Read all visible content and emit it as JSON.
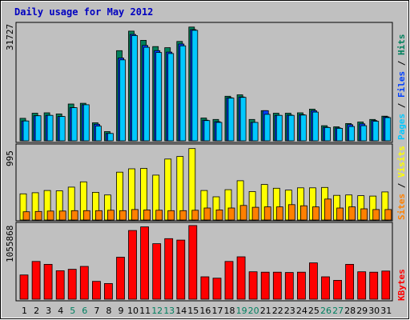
{
  "title": "Daily usage for May 2012",
  "colors": {
    "title": "#0000c0",
    "hits": "#00805c",
    "files": "#0040ff",
    "pages": "#00c8ff",
    "visits": "#ffff00",
    "sites": "#ff8000",
    "kbytes": "#ff0000",
    "day_weekday": "#000000",
    "day_weekend": "#008060"
  },
  "chart_data": [
    {
      "type": "bar",
      "title": "Daily usage for May 2012",
      "panel": "hits-files-pages",
      "ymax_label": "31727",
      "ylim": [
        0,
        31727
      ],
      "series": [
        {
          "name": "Hits",
          "values": [
            6100,
            7500,
            7600,
            7300,
            10000,
            10200,
            4900,
            2500,
            24500,
            29800,
            27300,
            25600,
            25300,
            27000,
            30900,
            6200,
            5800,
            12100,
            12500,
            5800,
            8200,
            7500,
            7500,
            7600,
            8600,
            4100,
            3800,
            4700,
            5100,
            5800,
            6700
          ]
        },
        {
          "name": "Files",
          "values": [
            5400,
            6800,
            6900,
            6600,
            9000,
            9800,
            4500,
            2000,
            22500,
            28900,
            25900,
            24500,
            24100,
            26300,
            30200,
            5600,
            5200,
            11700,
            11900,
            5000,
            8200,
            6900,
            7000,
            7100,
            8200,
            3700,
            3500,
            4400,
            4600,
            5500,
            6500
          ]
        },
        {
          "name": "Pages",
          "values": [
            5400,
            6800,
            6900,
            6600,
            9000,
            9800,
            4000,
            2000,
            22000,
            28600,
            25400,
            24000,
            23700,
            25800,
            30000,
            5500,
            5000,
            11600,
            11800,
            5000,
            7200,
            6900,
            6900,
            7000,
            7800,
            3600,
            3400,
            3900,
            4100,
            5300,
            6300
          ]
        }
      ],
      "categories": [
        "1",
        "2",
        "3",
        "4",
        "5",
        "6",
        "7",
        "8",
        "9",
        "10",
        "11",
        "12",
        "13",
        "14",
        "15",
        "16",
        "17",
        "18",
        "19",
        "20",
        "21",
        "22",
        "23",
        "24",
        "25",
        "26",
        "27",
        "28",
        "29",
        "30",
        "31"
      ]
    },
    {
      "type": "bar",
      "panel": "visits-sites",
      "ymax_label": "995",
      "ylim": [
        0,
        995
      ],
      "series": [
        {
          "name": "Visits",
          "values": [
            350,
            365,
            395,
            390,
            440,
            510,
            370,
            335,
            640,
            685,
            690,
            600,
            815,
            850,
            955,
            395,
            310,
            405,
            525,
            380,
            475,
            425,
            400,
            430,
            430,
            435,
            330,
            335,
            325,
            320,
            375
          ]
        },
        {
          "name": "Sites",
          "values": [
            110,
            115,
            120,
            120,
            125,
            125,
            125,
            130,
            125,
            140,
            135,
            130,
            125,
            125,
            130,
            160,
            135,
            160,
            195,
            170,
            175,
            175,
            205,
            190,
            175,
            280,
            160,
            175,
            150,
            140,
            140
          ]
        }
      ],
      "categories": [
        "1",
        "2",
        "3",
        "4",
        "5",
        "6",
        "7",
        "8",
        "9",
        "10",
        "11",
        "12",
        "13",
        "14",
        "15",
        "16",
        "17",
        "18",
        "19",
        "20",
        "21",
        "22",
        "23",
        "24",
        "25",
        "26",
        "27",
        "28",
        "29",
        "30",
        "31"
      ]
    },
    {
      "type": "bar",
      "panel": "kbytes",
      "ymax_label": "1055868",
      "ylim": [
        0,
        1055868
      ],
      "series": [
        {
          "name": "KBytes",
          "values": [
            340000,
            530000,
            490000,
            400000,
            420000,
            460000,
            250000,
            220000,
            590000,
            965000,
            1015000,
            780000,
            850000,
            830000,
            1035000,
            315000,
            295000,
            530000,
            595000,
            385000,
            380000,
            380000,
            375000,
            380000,
            510000,
            315000,
            265000,
            490000,
            385000,
            380000,
            395000
          ]
        }
      ],
      "categories": [
        "1",
        "2",
        "3",
        "4",
        "5",
        "6",
        "7",
        "8",
        "9",
        "10",
        "11",
        "12",
        "13",
        "14",
        "15",
        "16",
        "17",
        "18",
        "19",
        "20",
        "21",
        "22",
        "23",
        "24",
        "25",
        "26",
        "27",
        "28",
        "29",
        "30",
        "31"
      ]
    }
  ],
  "days": [
    {
      "label": "1",
      "weekend": false
    },
    {
      "label": "2",
      "weekend": false
    },
    {
      "label": "3",
      "weekend": false
    },
    {
      "label": "4",
      "weekend": false
    },
    {
      "label": "5",
      "weekend": true
    },
    {
      "label": "6",
      "weekend": true
    },
    {
      "label": "7",
      "weekend": false
    },
    {
      "label": "8",
      "weekend": false
    },
    {
      "label": "9",
      "weekend": false
    },
    {
      "label": "10",
      "weekend": false
    },
    {
      "label": "11",
      "weekend": false
    },
    {
      "label": "12",
      "weekend": true
    },
    {
      "label": "13",
      "weekend": true
    },
    {
      "label": "14",
      "weekend": false
    },
    {
      "label": "15",
      "weekend": false
    },
    {
      "label": "16",
      "weekend": false
    },
    {
      "label": "17",
      "weekend": false
    },
    {
      "label": "18",
      "weekend": false
    },
    {
      "label": "19",
      "weekend": true
    },
    {
      "label": "20",
      "weekend": true
    },
    {
      "label": "21",
      "weekend": false
    },
    {
      "label": "22",
      "weekend": false
    },
    {
      "label": "23",
      "weekend": false
    },
    {
      "label": "24",
      "weekend": false
    },
    {
      "label": "25",
      "weekend": false
    },
    {
      "label": "26",
      "weekend": true
    },
    {
      "label": "27",
      "weekend": true
    },
    {
      "label": "28",
      "weekend": false
    },
    {
      "label": "29",
      "weekend": false
    },
    {
      "label": "30",
      "weekend": false
    },
    {
      "label": "31",
      "weekend": false
    }
  ],
  "legends": {
    "panel1": [
      {
        "text": "Pages",
        "color_key": "pages"
      },
      {
        "text": " / ",
        "color_key": "day_weekday"
      },
      {
        "text": "Files",
        "color_key": "files"
      },
      {
        "text": " / ",
        "color_key": "day_weekday"
      },
      {
        "text": "Hits",
        "color_key": "hits"
      }
    ],
    "panel2": [
      {
        "text": "Sites",
        "color_key": "sites"
      },
      {
        "text": " / ",
        "color_key": "day_weekday"
      },
      {
        "text": "Visits",
        "color_key": "visits"
      }
    ],
    "panel3": [
      {
        "text": "KBytes",
        "color_key": "kbytes"
      }
    ]
  }
}
